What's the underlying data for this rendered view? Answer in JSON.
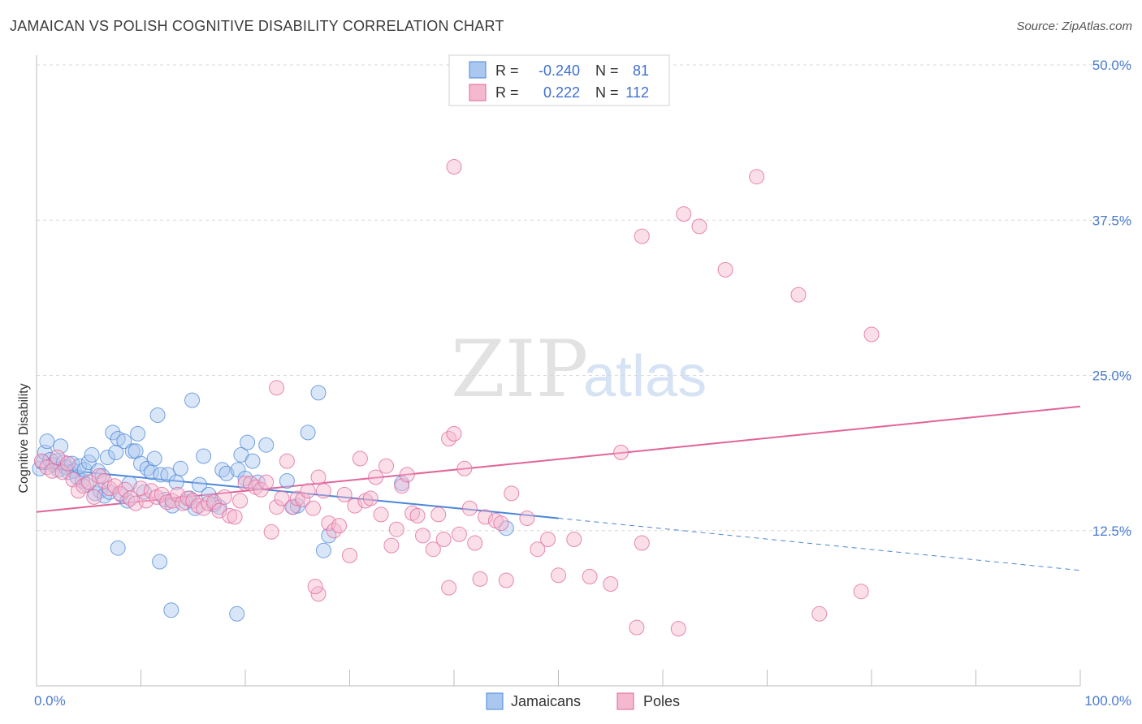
{
  "title": "JAMAICAN VS POLISH COGNITIVE DISABILITY CORRELATION CHART",
  "source": "Source: ZipAtlas.com",
  "watermark": {
    "zip": "ZIP",
    "atlas": "atlas"
  },
  "colors": {
    "blue": "#4a86d8",
    "blue_fill": "#aac8ef",
    "pink": "#e0649a",
    "pink_fill": "#f4b9cf",
    "grid": "#d8d8d8"
  },
  "legend": {
    "rows": [
      {
        "r_label": "R =",
        "r_value": "-0.240",
        "n_label": "N =",
        "n_value": "81"
      },
      {
        "r_label": "R =",
        "r_value": "0.222",
        "n_label": "N =",
        "n_value": "112"
      }
    ]
  },
  "chart_data": {
    "type": "scatter",
    "title": "JAMAICAN VS POLISH COGNITIVE DISABILITY CORRELATION CHART",
    "xlabel": "",
    "ylabel": "Cognitive Disability",
    "xlim": [
      0,
      100
    ],
    "ylim": [
      0,
      50
    ],
    "y_ticks": [
      12.5,
      25.0,
      37.5,
      50.0
    ],
    "y_tick_labels": [
      "12.5%",
      "25.0%",
      "37.5%",
      "50.0%"
    ],
    "x_tick_labels": [
      "0.0%",
      "100.0%"
    ],
    "grid": "horizontal-dashed",
    "legend_placement": "top-center",
    "series": [
      {
        "name": "Jamaicans",
        "color": "#4a86d8",
        "trend": {
          "x0": 0,
          "y0": 17.6,
          "x1": 50,
          "y1": 13.5,
          "dashed_to_x": 100,
          "dashed_to_y": 9.3
        },
        "points": [
          [
            0.3,
            17.5
          ],
          [
            0.6,
            18.0
          ],
          [
            0.8,
            18.8
          ],
          [
            1.0,
            19.7
          ],
          [
            1.3,
            18.2
          ],
          [
            1.6,
            17.8
          ],
          [
            1.9,
            18.1
          ],
          [
            2.1,
            17.4
          ],
          [
            2.3,
            19.3
          ],
          [
            2.6,
            18.0
          ],
          [
            2.8,
            17.6
          ],
          [
            3.1,
            17.2
          ],
          [
            3.4,
            17.9
          ],
          [
            3.6,
            17.3
          ],
          [
            3.9,
            16.8
          ],
          [
            4.1,
            17.7
          ],
          [
            4.4,
            16.5
          ],
          [
            4.6,
            17.4
          ],
          [
            4.8,
            16.2
          ],
          [
            5.0,
            18.0
          ],
          [
            5.3,
            18.6
          ],
          [
            5.6,
            15.5
          ],
          [
            5.9,
            17.3
          ],
          [
            6.1,
            15.7
          ],
          [
            6.3,
            16.9
          ],
          [
            6.5,
            15.3
          ],
          [
            6.8,
            18.4
          ],
          [
            7.0,
            15.6
          ],
          [
            7.3,
            20.4
          ],
          [
            7.6,
            18.8
          ],
          [
            7.8,
            19.9
          ],
          [
            8.1,
            15.4
          ],
          [
            8.4,
            19.7
          ],
          [
            8.7,
            14.9
          ],
          [
            8.9,
            16.3
          ],
          [
            9.2,
            18.9
          ],
          [
            9.5,
            18.9
          ],
          [
            9.7,
            20.3
          ],
          [
            10.0,
            17.9
          ],
          [
            10.3,
            15.6
          ],
          [
            10.6,
            17.5
          ],
          [
            11.0,
            17.2
          ],
          [
            11.3,
            18.3
          ],
          [
            11.6,
            21.8
          ],
          [
            11.9,
            17.0
          ],
          [
            12.3,
            15.0
          ],
          [
            12.6,
            17.0
          ],
          [
            13.0,
            14.5
          ],
          [
            13.4,
            16.4
          ],
          [
            13.8,
            17.5
          ],
          [
            14.3,
            14.8
          ],
          [
            14.7,
            15.1
          ],
          [
            15.2,
            14.3
          ],
          [
            15.6,
            16.2
          ],
          [
            16.0,
            18.5
          ],
          [
            16.5,
            15.4
          ],
          [
            17.0,
            14.6
          ],
          [
            17.5,
            14.4
          ],
          [
            17.8,
            17.4
          ],
          [
            18.2,
            17.1
          ],
          [
            19.3,
            17.4
          ],
          [
            19.6,
            18.6
          ],
          [
            20.0,
            16.7
          ],
          [
            20.2,
            19.6
          ],
          [
            20.7,
            18.1
          ],
          [
            21.2,
            16.4
          ],
          [
            22.0,
            19.4
          ],
          [
            24.0,
            16.5
          ],
          [
            24.6,
            14.4
          ],
          [
            25.0,
            14.5
          ],
          [
            26.0,
            20.4
          ],
          [
            27.0,
            23.6
          ],
          [
            27.5,
            10.9
          ],
          [
            28.0,
            12.1
          ],
          [
            35.0,
            16.3
          ],
          [
            45.0,
            12.7
          ],
          [
            14.9,
            23.0
          ],
          [
            7.8,
            11.1
          ],
          [
            11.8,
            10.0
          ],
          [
            12.9,
            6.1
          ],
          [
            19.2,
            5.8
          ]
        ]
      },
      {
        "name": "Poles",
        "color": "#e0649a",
        "trend": {
          "x0": 0,
          "y0": 14.0,
          "x1": 100,
          "y1": 22.5
        },
        "points": [
          [
            0.5,
            18.1
          ],
          [
            1.0,
            17.6
          ],
          [
            1.5,
            17.3
          ],
          [
            2.0,
            18.4
          ],
          [
            2.5,
            17.2
          ],
          [
            3.0,
            17.9
          ],
          [
            3.5,
            16.6
          ],
          [
            4.0,
            15.7
          ],
          [
            4.5,
            16.1
          ],
          [
            5.0,
            16.4
          ],
          [
            5.5,
            15.2
          ],
          [
            6.0,
            16.9
          ],
          [
            6.5,
            16.5
          ],
          [
            7.0,
            15.9
          ],
          [
            7.5,
            16.1
          ],
          [
            8.0,
            15.5
          ],
          [
            8.5,
            15.8
          ],
          [
            9.0,
            15.1
          ],
          [
            9.5,
            14.7
          ],
          [
            10.0,
            15.9
          ],
          [
            10.5,
            14.9
          ],
          [
            11.0,
            15.7
          ],
          [
            11.5,
            15.2
          ],
          [
            12.0,
            15.4
          ],
          [
            12.5,
            14.8
          ],
          [
            13.0,
            14.9
          ],
          [
            13.5,
            15.4
          ],
          [
            14.0,
            14.7
          ],
          [
            14.5,
            15.1
          ],
          [
            15.0,
            14.9
          ],
          [
            15.5,
            14.5
          ],
          [
            16.0,
            14.3
          ],
          [
            16.5,
            14.7
          ],
          [
            17.0,
            14.8
          ],
          [
            17.5,
            14.1
          ],
          [
            18.0,
            15.2
          ],
          [
            18.5,
            13.7
          ],
          [
            19.0,
            13.6
          ],
          [
            19.5,
            14.9
          ],
          [
            20.0,
            16.3
          ],
          [
            20.5,
            16.3
          ],
          [
            21.0,
            16.0
          ],
          [
            21.5,
            15.8
          ],
          [
            22.0,
            16.4
          ],
          [
            22.5,
            12.4
          ],
          [
            23.0,
            14.4
          ],
          [
            23.5,
            15.1
          ],
          [
            24.0,
            18.1
          ],
          [
            24.5,
            14.4
          ],
          [
            25.0,
            15.1
          ],
          [
            25.5,
            15.0
          ],
          [
            26.0,
            15.7
          ],
          [
            26.5,
            14.3
          ],
          [
            27.0,
            16.8
          ],
          [
            27.5,
            15.7
          ],
          [
            28.0,
            13.1
          ],
          [
            28.5,
            12.5
          ],
          [
            29.0,
            12.9
          ],
          [
            29.5,
            15.4
          ],
          [
            30.0,
            10.5
          ],
          [
            30.5,
            14.5
          ],
          [
            31.0,
            18.3
          ],
          [
            31.5,
            14.9
          ],
          [
            32.0,
            15.1
          ],
          [
            32.5,
            16.8
          ],
          [
            33.0,
            13.8
          ],
          [
            33.5,
            17.7
          ],
          [
            34.0,
            11.3
          ],
          [
            34.5,
            12.6
          ],
          [
            35.0,
            16.1
          ],
          [
            35.5,
            17.0
          ],
          [
            36.0,
            13.9
          ],
          [
            36.5,
            13.7
          ],
          [
            37.0,
            12.1
          ],
          [
            38.0,
            11.0
          ],
          [
            38.5,
            13.8
          ],
          [
            39.0,
            11.8
          ],
          [
            39.5,
            19.9
          ],
          [
            40.0,
            20.3
          ],
          [
            40.5,
            12.2
          ],
          [
            41.0,
            17.5
          ],
          [
            41.5,
            14.3
          ],
          [
            42.0,
            11.5
          ],
          [
            43.0,
            13.6
          ],
          [
            44.0,
            13.3
          ],
          [
            44.5,
            13.1
          ],
          [
            45.0,
            8.5
          ],
          [
            45.5,
            15.5
          ],
          [
            47.0,
            13.5
          ],
          [
            48.0,
            11.0
          ],
          [
            49.0,
            11.8
          ],
          [
            50.0,
            8.9
          ],
          [
            51.5,
            11.8
          ],
          [
            53.0,
            8.8
          ],
          [
            55.0,
            8.2
          ],
          [
            56.0,
            18.8
          ],
          [
            57.5,
            4.7
          ],
          [
            58.0,
            11.5
          ],
          [
            27.0,
            7.4
          ],
          [
            26.7,
            8.0
          ],
          [
            39.5,
            7.9
          ],
          [
            23.0,
            24.0
          ],
          [
            40.0,
            41.8
          ],
          [
            58.0,
            36.2
          ],
          [
            62.0,
            38.0
          ],
          [
            63.5,
            37.0
          ],
          [
            66.0,
            33.5
          ],
          [
            69.0,
            41.0
          ],
          [
            73.0,
            31.5
          ],
          [
            80.0,
            28.3
          ],
          [
            75.0,
            5.8
          ],
          [
            79.0,
            7.6
          ],
          [
            61.5,
            4.6
          ],
          [
            42.5,
            8.6
          ]
        ]
      }
    ]
  }
}
